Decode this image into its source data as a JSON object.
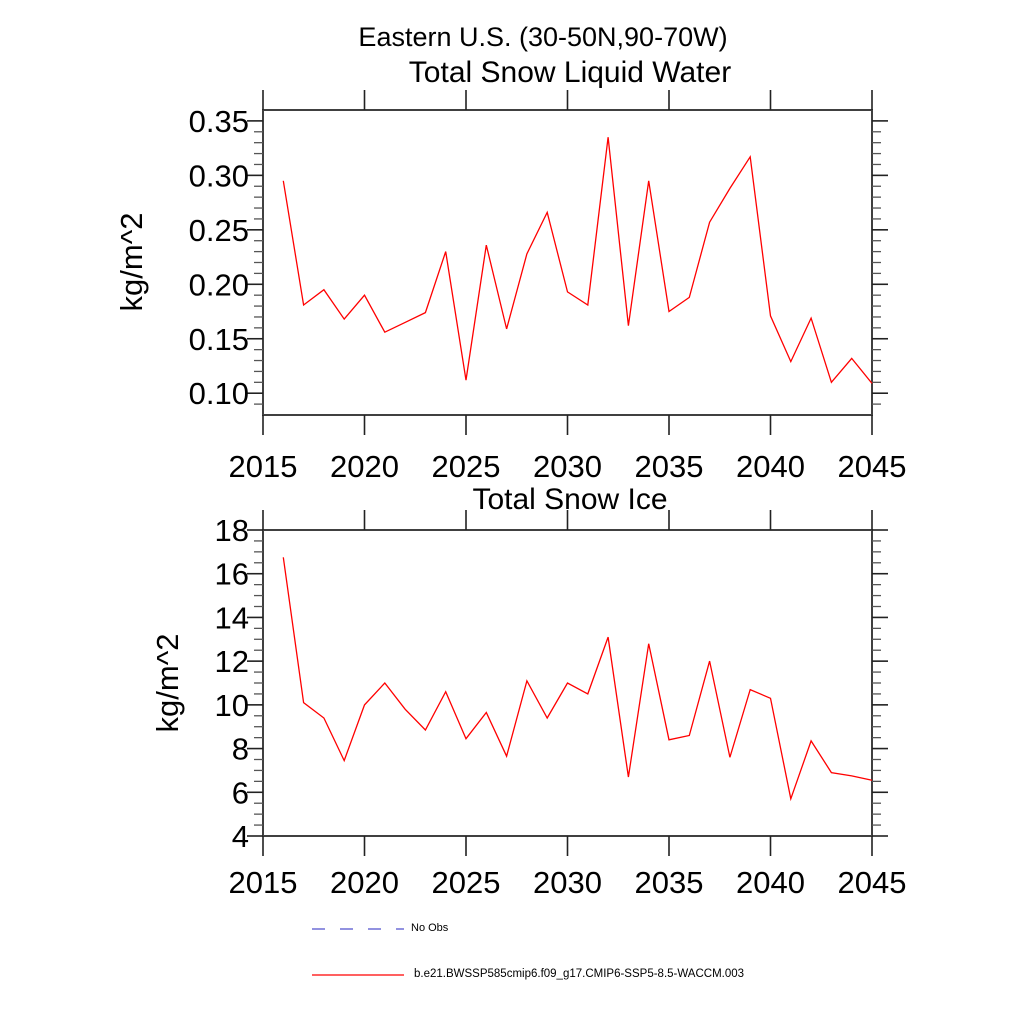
{
  "page": {
    "main_title": "Eastern U.S. (30-50N,90-70W)"
  },
  "chart_data": [
    {
      "type": "line",
      "title": "Total Snow Liquid Water",
      "ylabel": "kg/m^2",
      "series_name": "b.e21.BWSSP585cmip6.f09_g17.CMIP6-SSP5-8.5-WACCM.003",
      "line_color": "#ff0000",
      "x": [
        2016,
        2017,
        2018,
        2019,
        2020,
        2021,
        2022,
        2023,
        2024,
        2025,
        2026,
        2027,
        2028,
        2029,
        2030,
        2031,
        2032,
        2033,
        2034,
        2035,
        2036,
        2037,
        2038,
        2039,
        2040,
        2041,
        2042,
        2043,
        2044,
        2045
      ],
      "values": [
        0.295,
        0.181,
        0.195,
        0.168,
        0.19,
        0.156,
        0.165,
        0.174,
        0.23,
        0.112,
        0.236,
        0.159,
        0.228,
        0.266,
        0.193,
        0.181,
        0.335,
        0.162,
        0.295,
        0.175,
        0.188,
        0.257,
        0.288,
        0.317,
        0.171,
        0.129,
        0.169,
        0.11,
        0.132,
        0.109
      ],
      "xlim": [
        2015,
        2045
      ],
      "ylim": [
        0.08,
        0.36
      ],
      "xticks": [
        2015,
        2020,
        2025,
        2030,
        2035,
        2040,
        2045
      ],
      "yticks": [
        0.1,
        0.15,
        0.2,
        0.25,
        0.3,
        0.35
      ],
      "ytick_labels": [
        "0.10",
        "0.15",
        "0.20",
        "0.25",
        "0.30",
        "0.35"
      ],
      "y_minor_step": 0.01,
      "grid": false
    },
    {
      "type": "line",
      "title": "Total Snow Ice",
      "ylabel": "kg/m^2",
      "series_name": "b.e21.BWSSP585cmip6.f09_g17.CMIP6-SSP5-8.5-WACCM.003",
      "line_color": "#ff0000",
      "x": [
        2016,
        2017,
        2018,
        2019,
        2020,
        2021,
        2022,
        2023,
        2024,
        2025,
        2026,
        2027,
        2028,
        2029,
        2030,
        2031,
        2032,
        2033,
        2034,
        2035,
        2036,
        2037,
        2038,
        2039,
        2040,
        2041,
        2042,
        2043,
        2044,
        2045
      ],
      "values": [
        16.75,
        10.1,
        9.4,
        7.45,
        10.0,
        11.0,
        9.8,
        8.85,
        10.6,
        8.45,
        9.65,
        7.65,
        11.1,
        9.4,
        11.0,
        10.5,
        13.1,
        6.7,
        12.8,
        8.4,
        8.6,
        12.0,
        7.6,
        10.7,
        10.3,
        5.7,
        8.35,
        6.9,
        6.75,
        6.55
      ],
      "xlim": [
        2015,
        2045
      ],
      "ylim": [
        4,
        18
      ],
      "xticks": [
        2015,
        2020,
        2025,
        2030,
        2035,
        2040,
        2045
      ],
      "yticks": [
        4,
        6,
        8,
        10,
        12,
        14,
        16,
        18
      ],
      "ytick_labels": [
        "4",
        "6",
        "8",
        "10",
        "12",
        "14",
        "16",
        "18"
      ],
      "y_minor_step": 0.5,
      "grid": false
    }
  ],
  "legend": {
    "items": [
      {
        "label": "No Obs",
        "color": "#6e6ed6",
        "dashed": true
      },
      {
        "label": "b.e21.BWSSP585cmip6.f09_g17.CMIP6-SSP5-8.5-WACCM.003",
        "color": "#ff0000",
        "dashed": false
      }
    ]
  }
}
